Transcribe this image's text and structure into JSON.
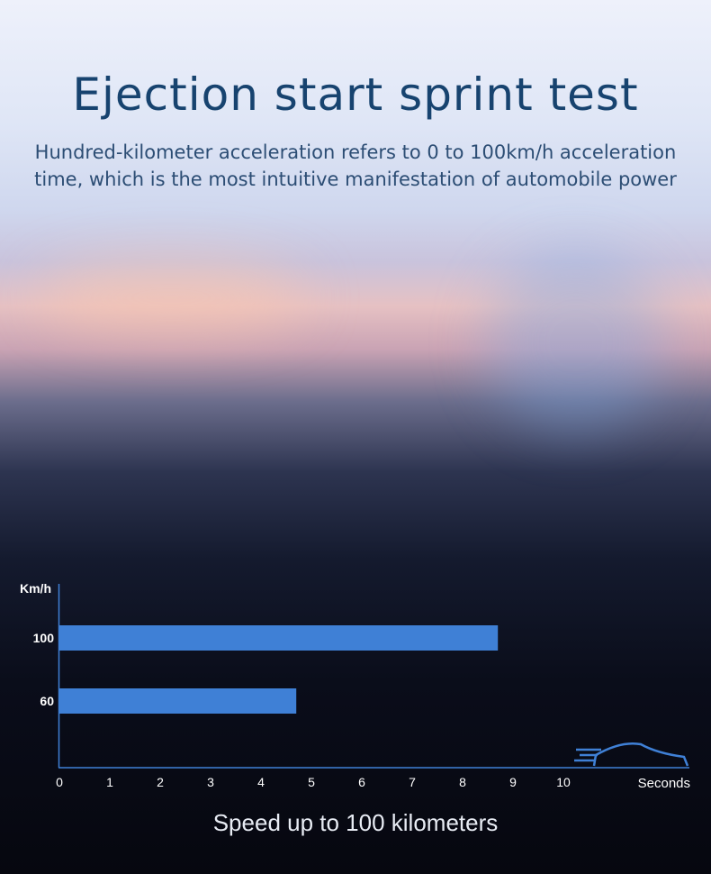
{
  "header": {
    "title": "Ejection start sprint test",
    "subtitle_line1": "Hundred-kilometer acceleration refers to 0 to 100km/h acceleration",
    "subtitle_line2": "time, which is the most intuitive manifestation of automobile power"
  },
  "caption": "Speed up to 100 kilometers",
  "chart_data": {
    "type": "bar",
    "orientation": "horizontal",
    "categories": [
      "100",
      "60"
    ],
    "values": [
      8.7,
      4.7
    ],
    "xlabel": "Seconds",
    "ylabel": "Km/h",
    "xlim": [
      0,
      10
    ],
    "xticks": [
      "0",
      "1",
      "2",
      "3",
      "4",
      "5",
      "6",
      "7",
      "8",
      "9",
      "10"
    ],
    "grid": false,
    "bar_color": "#3f80d6",
    "axis_color": "#3f80d6"
  },
  "icons": {
    "car": "car-speed-icon"
  }
}
